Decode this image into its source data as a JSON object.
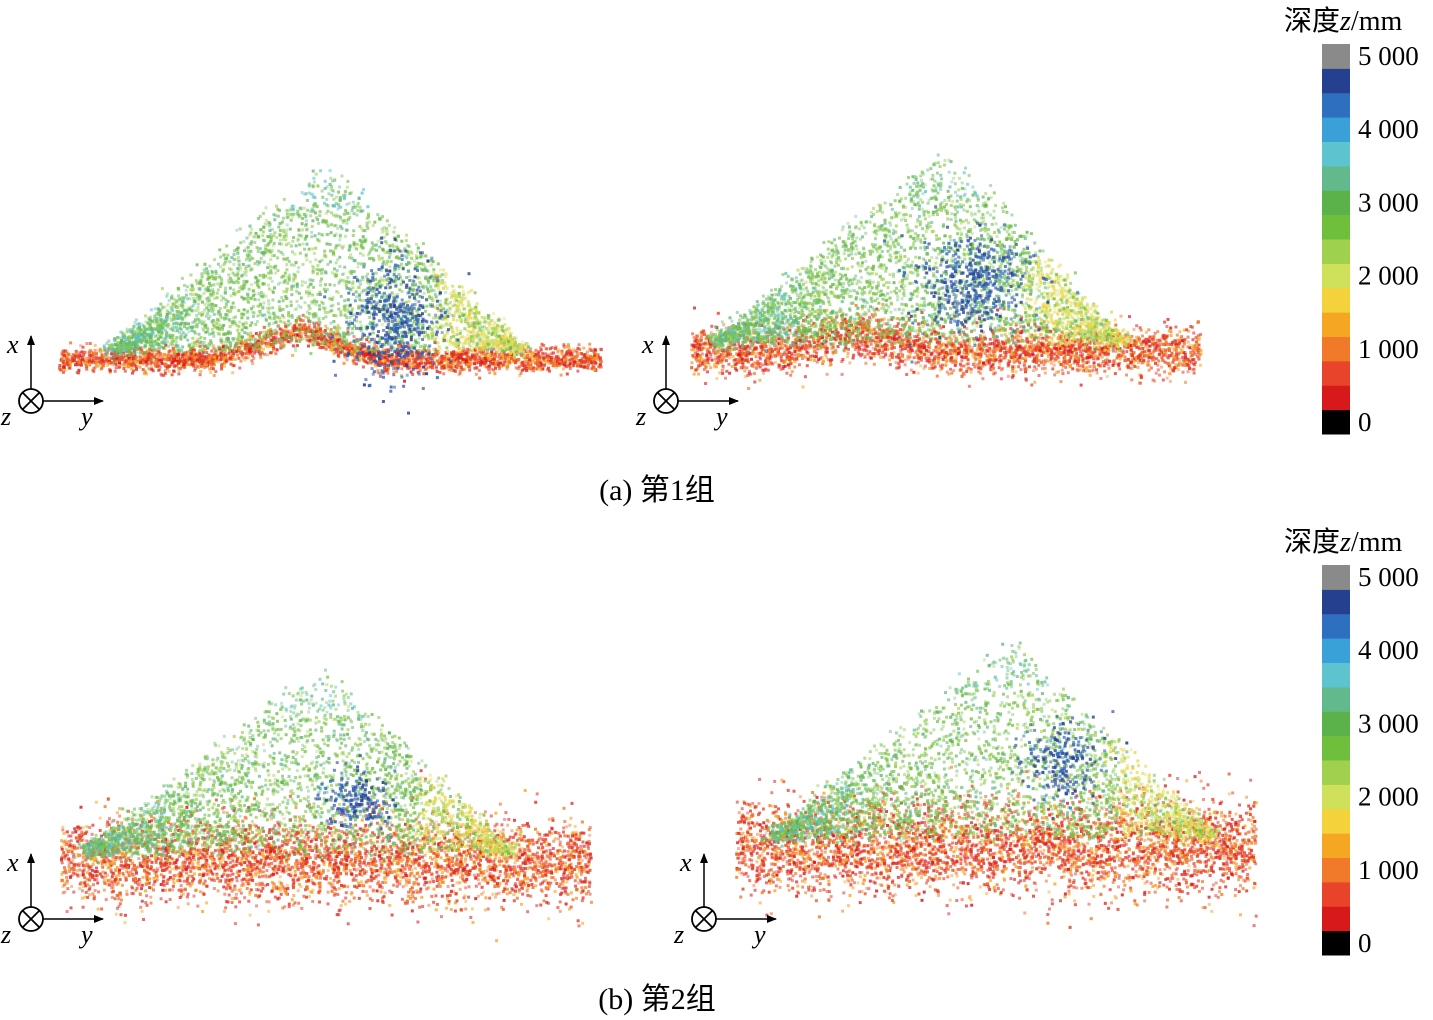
{
  "colorbar": {
    "title_prefix": "深度",
    "title_var": "z",
    "title_unit": "/mm",
    "ticks": [
      "5 000",
      "4 000",
      "3 000",
      "2 000",
      "1 000",
      "0"
    ],
    "range": [
      0,
      5000
    ],
    "colors": [
      "#000000",
      "#d7191c",
      "#e8442a",
      "#f07a2a",
      "#f5a623",
      "#f3d23c",
      "#cfe05a",
      "#9fd04e",
      "#6fbf3d",
      "#5bb24a",
      "#62b98c",
      "#5cc3cf",
      "#3aa0d8",
      "#2e6fc0",
      "#24408f",
      "#8a8a8a"
    ]
  },
  "axes": {
    "x": "x",
    "y": "y",
    "z": "z"
  },
  "captions": {
    "a": "(a) 第1组",
    "b": "(b) 第2组"
  },
  "chart_data": [
    {
      "type": "scatter",
      "group": "(a) 第1组",
      "panel": "left",
      "color_variable": "深度z/mm",
      "zlim": [
        0,
        5000
      ]
    },
    {
      "type": "scatter",
      "group": "(a) 第1组",
      "panel": "right",
      "color_variable": "深度z/mm",
      "zlim": [
        0,
        5000
      ]
    },
    {
      "type": "scatter",
      "group": "(b) 第2组",
      "panel": "left",
      "color_variable": "深度z/mm",
      "zlim": [
        0,
        5000
      ]
    },
    {
      "type": "scatter",
      "group": "(b) 第2组",
      "panel": "right",
      "color_variable": "深度z/mm",
      "zlim": [
        0,
        5000
      ]
    }
  ]
}
